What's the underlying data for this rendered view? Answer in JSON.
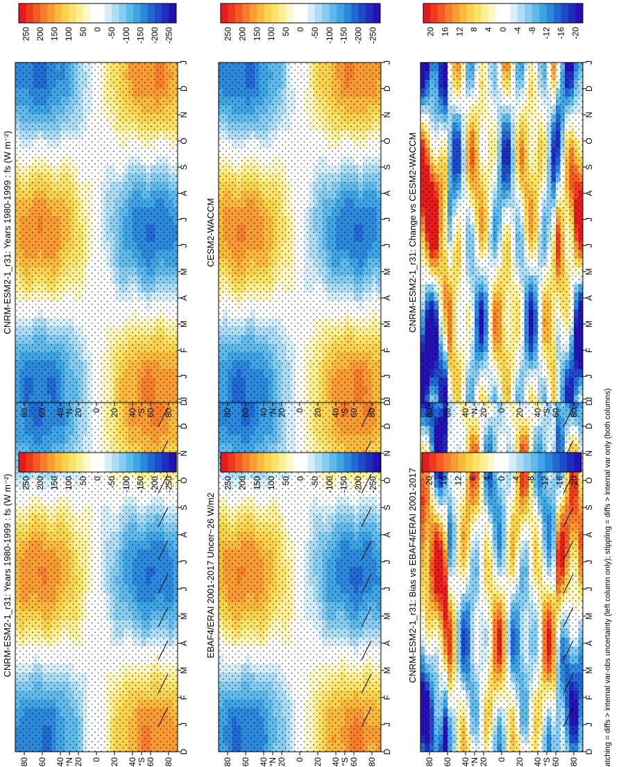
{
  "figure": {
    "footnote": "hatching = diffs > internal var-obs uncertainty (left column only); stippling = diffs > internal var only (both columns)"
  },
  "chart_data": [
    {
      "type": "heatmap",
      "title": "CNRM-ESM2-1_r31: Years 1980-1999 : fs (W m⁻²)",
      "months": [
        "D",
        "J",
        "F",
        "M",
        "A",
        "M",
        "J",
        "J",
        "A",
        "S",
        "O",
        "N",
        "D",
        "J"
      ],
      "lat_ticks": [
        "80",
        "60",
        "40",
        "°N",
        "20",
        "0",
        "20",
        "40",
        "°S",
        "60",
        "80"
      ],
      "colorbar": {
        "ticks": [
          "250",
          "200",
          "150",
          "100",
          "50",
          "0",
          "-50",
          "-100",
          "-150",
          "-200",
          "-250"
        ],
        "range": [
          -250,
          250
        ]
      },
      "field": "sw_annual_cycle",
      "amplitude": 220,
      "hatching": true
    },
    {
      "type": "heatmap",
      "title": "CNRM-ESM2-1_r31: Years 1980-1999 : fs (W m⁻²)",
      "months": [
        "D",
        "J",
        "F",
        "M",
        "A",
        "M",
        "J",
        "J",
        "A",
        "S",
        "O",
        "N",
        "D",
        "J"
      ],
      "lat_ticks": [
        "80",
        "60",
        "40",
        "°N",
        "20",
        "0",
        "20",
        "40",
        "°S",
        "60",
        "80"
      ],
      "colorbar": {
        "ticks": [
          "250",
          "200",
          "150",
          "100",
          "50",
          "0",
          "-50",
          "-100",
          "-150",
          "-200",
          "-250"
        ],
        "range": [
          -250,
          250
        ]
      },
      "field": "sw_annual_cycle",
      "amplitude": 215,
      "hatching": false
    },
    {
      "type": "heatmap",
      "title": "EBAF4/ERAI 2001-2017 Uncer~26 W/m2",
      "months": [
        "D",
        "J",
        "F",
        "M",
        "A",
        "M",
        "J",
        "J",
        "A",
        "S",
        "O",
        "N",
        "D",
        "J"
      ],
      "lat_ticks": [
        "80",
        "60",
        "40",
        "°N",
        "20",
        "0",
        "20",
        "40",
        "°S",
        "60",
        "80"
      ],
      "colorbar": {
        "ticks": [
          "250",
          "200",
          "150",
          "100",
          "50",
          "0",
          "-50",
          "-100",
          "-150",
          "-200",
          "-250"
        ],
        "range": [
          -250,
          250
        ]
      },
      "field": "sw_annual_cycle",
      "amplitude": 215,
      "hatching": true
    },
    {
      "type": "heatmap",
      "title": "CESM2-WACCM",
      "months": [
        "D",
        "J",
        "F",
        "M",
        "A",
        "M",
        "J",
        "J",
        "A",
        "S",
        "O",
        "N",
        "D",
        "J"
      ],
      "lat_ticks": [
        "80",
        "60",
        "40",
        "°N",
        "20",
        "0",
        "20",
        "40",
        "°S",
        "60",
        "80"
      ],
      "colorbar": {
        "ticks": [
          "250",
          "200",
          "150",
          "100",
          "50",
          "0",
          "-50",
          "-100",
          "-150",
          "-200",
          "-250"
        ],
        "range": [
          -250,
          250
        ]
      },
      "field": "sw_annual_cycle",
      "amplitude": 215,
      "hatching": false
    },
    {
      "type": "heatmap",
      "title": "CNRM-ESM2-1_r31: Bias vs EBAF4/ERAI 2001-2017",
      "months": [
        "D",
        "J",
        "F",
        "M",
        "A",
        "M",
        "J",
        "J",
        "A",
        "S",
        "O",
        "N",
        "D",
        "J"
      ],
      "lat_ticks": [
        "80",
        "60",
        "40",
        "°N",
        "20",
        "0",
        "20",
        "40",
        "°S",
        "60",
        "80"
      ],
      "colorbar": {
        "ticks": [
          "20",
          "16",
          "12",
          "8",
          "4",
          "0",
          "-4",
          "-8",
          "-12",
          "-16",
          "-20"
        ],
        "range": [
          -22,
          22
        ]
      },
      "field": "difference",
      "amplitude": 20,
      "hatching": true
    },
    {
      "type": "heatmap",
      "title": "CNRM-ESM2-1_r31: Change vs CESM2-WACCM",
      "months": [
        "D",
        "J",
        "F",
        "M",
        "A",
        "M",
        "J",
        "J",
        "A",
        "S",
        "O",
        "N",
        "D",
        "J"
      ],
      "lat_ticks": [
        "80",
        "60",
        "40",
        "°N",
        "20",
        "0",
        "20",
        "40",
        "°S",
        "60",
        "80"
      ],
      "colorbar": {
        "ticks": [
          "20",
          "16",
          "12",
          "8",
          "4",
          "0",
          "-4",
          "-8",
          "-12",
          "-16",
          "-20"
        ],
        "range": [
          -22,
          22
        ]
      },
      "field": "difference",
      "amplitude": 22,
      "hatching": false
    }
  ]
}
